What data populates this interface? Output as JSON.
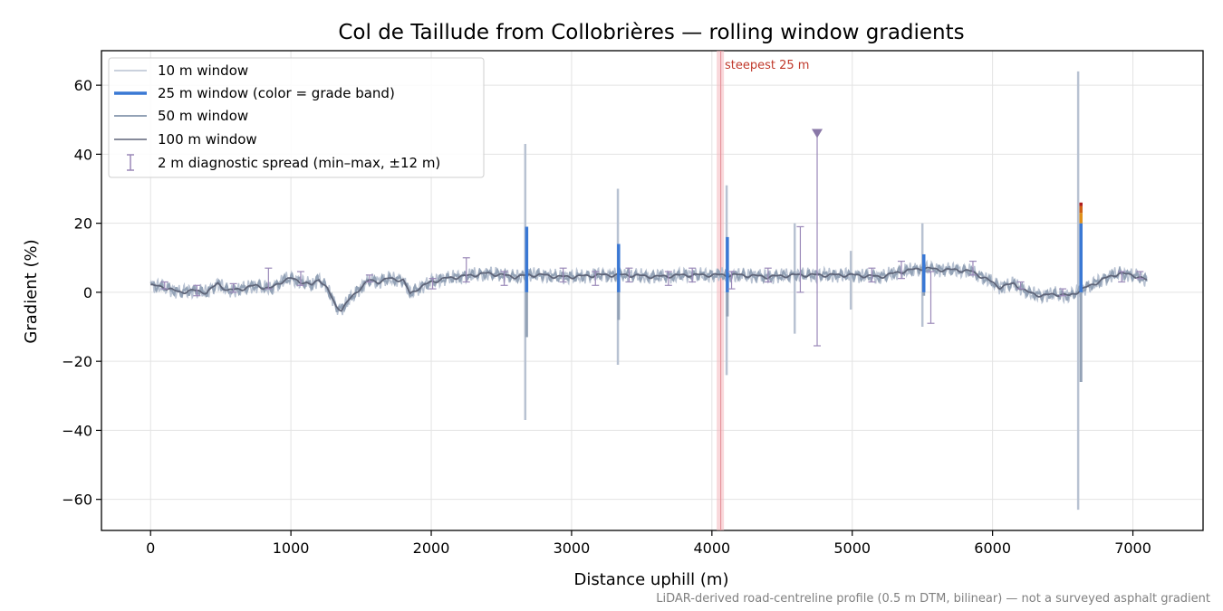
{
  "chart_data": {
    "type": "line",
    "title": "Col de Taillude from Collobrières — rolling window gradients",
    "xlabel": "Distance uphill (m)",
    "ylabel": "Gradient (%)",
    "xlim": [
      -350,
      7500
    ],
    "ylim": [
      -69,
      70
    ],
    "x_ticks": [
      0,
      1000,
      2000,
      3000,
      4000,
      5000,
      6000,
      7000
    ],
    "x_tick_labels": [
      "0",
      "1000",
      "2000",
      "3000",
      "4000",
      "5000",
      "6000",
      "7000"
    ],
    "y_ticks": [
      -60,
      -40,
      -20,
      0,
      20,
      40,
      60
    ],
    "y_tick_labels": [
      "−60",
      "−40",
      "−20",
      "0",
      "20",
      "40",
      "60"
    ],
    "grid": true,
    "legend_position": "top-left",
    "legend": [
      {
        "label": "10 m window",
        "color": "#b8c2d2",
        "style": "line-thin"
      },
      {
        "label": "25 m window (color = grade band)",
        "color": "#3a78d4",
        "style": "line-thick"
      },
      {
        "label": "50 m window",
        "color": "#93a2b6",
        "style": "line"
      },
      {
        "label": "100 m window",
        "color": "#5e6478",
        "style": "line"
      },
      {
        "label": "2 m diagnostic spread (min–max, ±12 m)",
        "color": "#9a88b8",
        "style": "errorbar"
      }
    ],
    "profile": {
      "x": [
        0,
        100,
        200,
        300,
        400,
        480,
        550,
        650,
        750,
        850,
        950,
        1000,
        1080,
        1150,
        1200,
        1260,
        1320,
        1360,
        1420,
        1500,
        1560,
        1620,
        1700,
        1800,
        1850,
        1900,
        1950,
        2000,
        2100,
        2200,
        2300,
        2400,
        2500,
        2600,
        2700,
        2800,
        2900,
        3000,
        3200,
        3400,
        3600,
        3800,
        4000,
        4200,
        4400,
        4600,
        4800,
        5000,
        5200,
        5350,
        5500,
        5650,
        5750,
        5850,
        5950,
        6050,
        6150,
        6250,
        6350,
        6450,
        6550,
        6620,
        6700,
        6800,
        6900,
        7000,
        7100
      ],
      "y": [
        2,
        1.5,
        0,
        0.5,
        0,
        2.5,
        0.5,
        1,
        2,
        1,
        3.5,
        4,
        3,
        2,
        4,
        1,
        -4,
        -5,
        -2,
        1.5,
        3.5,
        3,
        4,
        3.5,
        -0.5,
        1,
        2,
        3,
        4,
        4.5,
        5,
        5.5,
        5,
        4.5,
        5,
        5,
        4.5,
        4.5,
        5,
        5,
        4.5,
        5,
        5,
        5,
        4.5,
        5,
        5,
        5,
        4.5,
        6,
        7,
        6.5,
        6.5,
        6,
        4,
        1.5,
        2.5,
        0,
        -1,
        -0.5,
        -1,
        0.5,
        2,
        4,
        5.5,
        5,
        3.5
      ]
    },
    "spikes_10m": [
      {
        "x": 2670,
        "min": -37,
        "max": 43
      },
      {
        "x": 3330,
        "min": -21,
        "max": 30
      },
      {
        "x": 4105,
        "min": -24,
        "max": 31
      },
      {
        "x": 4590,
        "min": -12,
        "max": 20
      },
      {
        "x": 4990,
        "min": -5,
        "max": 12
      },
      {
        "x": 5500,
        "min": -10,
        "max": 20
      },
      {
        "x": 6610,
        "min": -63,
        "max": 64
      }
    ],
    "spikes_25m": [
      {
        "x": 2680,
        "min": -13,
        "max": 19
      },
      {
        "x": 3335,
        "min": -8,
        "max": 14
      },
      {
        "x": 4110,
        "min": -7,
        "max": 16
      },
      {
        "x": 5510,
        "min": -1,
        "max": 11
      },
      {
        "x": 6630,
        "min": -26,
        "max": 26
      }
    ],
    "grade_band_colors": [
      "#3a78d4",
      "#e0901a",
      "#d06014",
      "#b01c1c"
    ],
    "diagnostic_spread": [
      {
        "x": 100,
        "min": 1,
        "max": 3
      },
      {
        "x": 330,
        "min": -1,
        "max": 2
      },
      {
        "x": 590,
        "min": 0,
        "max": 2.5
      },
      {
        "x": 840,
        "min": 1,
        "max": 7
      },
      {
        "x": 1070,
        "min": 2,
        "max": 6
      },
      {
        "x": 1560,
        "min": 3,
        "max": 5
      },
      {
        "x": 2010,
        "min": 1,
        "max": 4
      },
      {
        "x": 2250,
        "min": 3,
        "max": 10
      },
      {
        "x": 2520,
        "min": 2,
        "max": 6
      },
      {
        "x": 2940,
        "min": 3,
        "max": 7
      },
      {
        "x": 3170,
        "min": 2,
        "max": 6
      },
      {
        "x": 3410,
        "min": 3,
        "max": 7
      },
      {
        "x": 3690,
        "min": 2,
        "max": 6
      },
      {
        "x": 3860,
        "min": 3,
        "max": 7
      },
      {
        "x": 4140,
        "min": 1,
        "max": 6
      },
      {
        "x": 4400,
        "min": 3,
        "max": 7
      },
      {
        "x": 4630,
        "min": 0,
        "max": 19
      },
      {
        "x": 4750,
        "min": -15.5,
        "max": 46,
        "clipped_marker": true
      },
      {
        "x": 5140,
        "min": 3,
        "max": 7
      },
      {
        "x": 5350,
        "min": 4,
        "max": 9
      },
      {
        "x": 5560,
        "min": -9,
        "max": 6
      },
      {
        "x": 5860,
        "min": 5,
        "max": 9
      },
      {
        "x": 6200,
        "min": 1,
        "max": 3
      },
      {
        "x": 6500,
        "min": -1,
        "max": 1
      },
      {
        "x": 6920,
        "min": 3,
        "max": 6
      },
      {
        "x": 7050,
        "min": 4,
        "max": 6
      }
    ],
    "steepest_marker": {
      "x": 4060,
      "label": "steepest 25 m"
    }
  },
  "footnote": "LiDAR-derived road-centreline profile (0.5 m DTM, bilinear) — not a surveyed asphalt gradient"
}
